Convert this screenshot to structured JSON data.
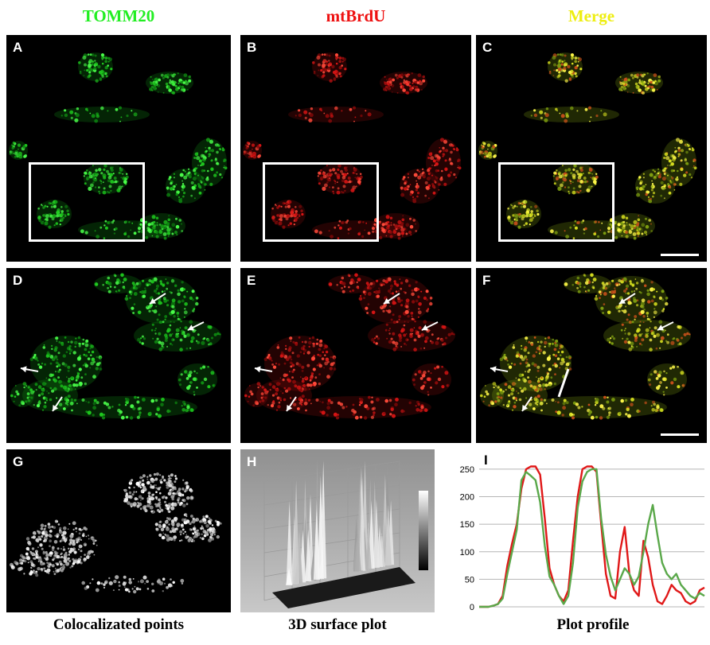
{
  "columns": {
    "tomm20": {
      "label": "TOMM20",
      "color": "#22ee22"
    },
    "mtbrdu": {
      "label": "mtBrdU",
      "color": "#ee1111"
    },
    "merge": {
      "label": "Merge",
      "color": "#eeee11"
    }
  },
  "panels": {
    "A": "A",
    "B": "B",
    "C": "C",
    "D": "D",
    "E": "E",
    "F": "F",
    "G": "G",
    "H": "H",
    "I": "I"
  },
  "captions": {
    "g": "Colocalizated points",
    "h": "3D surface plot",
    "i": "Plot profile"
  },
  "chart_data": {
    "type": "line",
    "ylim": [
      0,
      260
    ],
    "yticks": [
      "0",
      "50",
      "100",
      "150",
      "200",
      "250"
    ],
    "grid": true,
    "series": [
      {
        "color": "#e01818",
        "values": [
          0,
          0,
          0,
          2,
          5,
          20,
          75,
          115,
          150,
          215,
          250,
          255,
          255,
          240,
          160,
          70,
          40,
          20,
          10,
          30,
          120,
          200,
          250,
          255,
          255,
          245,
          150,
          60,
          20,
          15,
          100,
          145,
          60,
          30,
          20,
          120,
          90,
          40,
          10,
          5,
          20,
          40,
          30,
          25,
          10,
          5,
          10,
          30,
          35
        ]
      },
      {
        "color": "#5aa84a",
        "values": [
          0,
          0,
          0,
          2,
          5,
          15,
          60,
          100,
          140,
          230,
          245,
          238,
          230,
          190,
          110,
          55,
          40,
          20,
          5,
          20,
          80,
          180,
          228,
          245,
          250,
          250,
          160,
          95,
          55,
          30,
          50,
          70,
          60,
          40,
          55,
          100,
          150,
          185,
          130,
          80,
          60,
          50,
          60,
          40,
          30,
          20,
          15,
          25,
          20
        ]
      }
    ]
  }
}
